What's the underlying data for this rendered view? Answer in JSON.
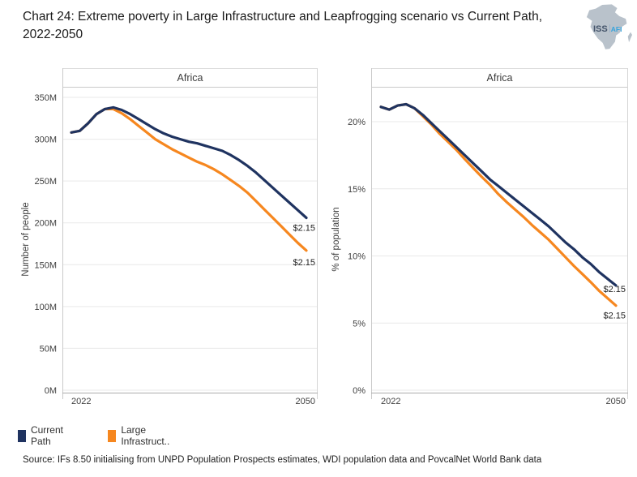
{
  "title": {
    "text": "Chart 24: Extreme poverty in Large Infrastructure and Leapfrogging scenario vs Current Path,\n2022-2050"
  },
  "logo": {
    "iss": "ISS",
    "afi": "AFI"
  },
  "legend": [
    {
      "label": "Current Path",
      "color": "#1f3360"
    },
    {
      "label": "Large Infrastruct..",
      "color": "#f6871f"
    }
  ],
  "source": "Source: IFs 8.50 initialising from UNPD Population Prospects estimates, WDI population data and PovcalNet World Bank data",
  "chart_data": [
    {
      "type": "line",
      "title": "Africa",
      "xlabel": "",
      "ylabel": "Number of people",
      "xlim": [
        2022,
        2050
      ],
      "ylim": [
        0,
        350
      ],
      "grid": "horizontal",
      "x": [
        2022,
        2023,
        2024,
        2025,
        2026,
        2027,
        2028,
        2029,
        2030,
        2031,
        2032,
        2033,
        2034,
        2035,
        2036,
        2037,
        2038,
        2039,
        2040,
        2041,
        2042,
        2043,
        2044,
        2045,
        2046,
        2047,
        2048,
        2049,
        2050
      ],
      "series": [
        {
          "name": "Current Path",
          "color": "#1f3360",
          "values": [
            308,
            310,
            319,
            330,
            336,
            338,
            335,
            330,
            324,
            318,
            312,
            307,
            303,
            300,
            297,
            295,
            292,
            289,
            286,
            281,
            275,
            268,
            260,
            251,
            242,
            233,
            224,
            215,
            206
          ]
        },
        {
          "name": "Large Infrastructure and Leapfrogging",
          "color": "#f6871f",
          "values": [
            308,
            310,
            319,
            330,
            336,
            336,
            331,
            324,
            316,
            308,
            300,
            294,
            288,
            283,
            278,
            273,
            269,
            264,
            258,
            251,
            244,
            236,
            226,
            216,
            206,
            196,
            186,
            176,
            167
          ]
        }
      ],
      "yticks": [
        {
          "v": 0,
          "label": "0M"
        },
        {
          "v": 50,
          "label": "50M"
        },
        {
          "v": 100,
          "label": "100M"
        },
        {
          "v": 150,
          "label": "150M"
        },
        {
          "v": 200,
          "label": "200M"
        },
        {
          "v": 250,
          "label": "250M"
        },
        {
          "v": 300,
          "label": "300M"
        },
        {
          "v": 350,
          "label": "350M"
        }
      ],
      "xticks": [
        {
          "v": 2022,
          "label": "2022",
          "align": "start"
        },
        {
          "v": 2050,
          "label": "2050",
          "align": "end"
        }
      ],
      "annotations": [
        {
          "series": 0,
          "text": "$2.15"
        },
        {
          "series": 1,
          "text": "$2.15"
        }
      ]
    },
    {
      "type": "line",
      "title": "Africa",
      "xlabel": "",
      "ylabel": "% of population",
      "xlim": [
        2022,
        2050
      ],
      "ylim": [
        0,
        22
      ],
      "grid": "horizontal",
      "x": [
        2022,
        2023,
        2024,
        2025,
        2026,
        2027,
        2028,
        2029,
        2030,
        2031,
        2032,
        2033,
        2034,
        2035,
        2036,
        2037,
        2038,
        2039,
        2040,
        2041,
        2042,
        2043,
        2044,
        2045,
        2046,
        2047,
        2048,
        2049,
        2050
      ],
      "series": [
        {
          "name": "Current Path",
          "color": "#1f3360",
          "values": [
            21.1,
            20.9,
            21.2,
            21.3,
            21.0,
            20.5,
            19.9,
            19.3,
            18.7,
            18.1,
            17.5,
            16.9,
            16.3,
            15.7,
            15.2,
            14.7,
            14.2,
            13.7,
            13.2,
            12.7,
            12.2,
            11.6,
            11.0,
            10.5,
            9.9,
            9.4,
            8.8,
            8.3,
            7.8
          ]
        },
        {
          "name": "Large Infrastructure and Leapfrogging",
          "color": "#f6871f",
          "values": [
            21.1,
            20.9,
            21.2,
            21.3,
            21.0,
            20.4,
            19.8,
            19.1,
            18.5,
            17.9,
            17.2,
            16.55,
            15.9,
            15.3,
            14.6,
            14.0,
            13.45,
            12.9,
            12.3,
            11.75,
            11.2,
            10.55,
            9.9,
            9.25,
            8.65,
            8.05,
            7.4,
            6.85,
            6.3
          ]
        }
      ],
      "yticks": [
        {
          "v": 0,
          "label": "0%"
        },
        {
          "v": 5,
          "label": "5%"
        },
        {
          "v": 10,
          "label": "10%"
        },
        {
          "v": 15,
          "label": "15%"
        },
        {
          "v": 20,
          "label": "20%"
        }
      ],
      "xticks": [
        {
          "v": 2022,
          "label": "2022",
          "align": "start"
        },
        {
          "v": 2050,
          "label": "2050",
          "align": "end"
        }
      ],
      "annotations": [
        {
          "series": 0,
          "text": "$2.15"
        },
        {
          "series": 1,
          "text": "$2.15"
        }
      ]
    }
  ]
}
